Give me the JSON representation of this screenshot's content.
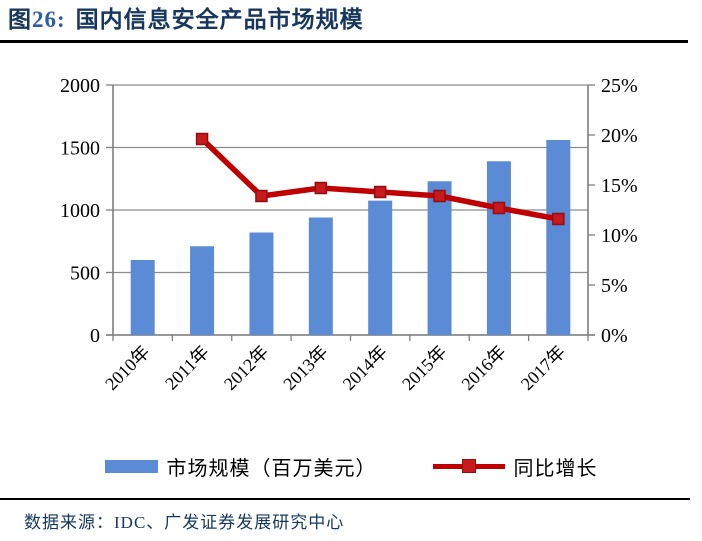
{
  "header": {
    "figure_prefix": "图",
    "figure_num": "26:",
    "title": "国内信息安全产品市场规模"
  },
  "chart_data": {
    "type": "bar",
    "subtype": "bar+line-combo",
    "categories": [
      "2010年",
      "2011年",
      "2012年",
      "2013年",
      "2014年",
      "2015年",
      "2016年",
      "2017年"
    ],
    "series": [
      {
        "name": "市场规模（百万美元）",
        "type": "bar",
        "axis": "left",
        "values": [
          600,
          710,
          820,
          940,
          1075,
          1230,
          1390,
          1560
        ]
      },
      {
        "name": "同比增长",
        "type": "line",
        "axis": "right",
        "unit": "%",
        "values": [
          null,
          19.6,
          13.9,
          14.7,
          14.3,
          13.9,
          12.7,
          11.6
        ]
      }
    ],
    "left_axis": {
      "min": 0,
      "max": 2000,
      "step": 500,
      "tick_labels": [
        "0",
        "500",
        "1000",
        "1500",
        "2000"
      ]
    },
    "right_axis": {
      "min": 0,
      "max": 25,
      "step": 5,
      "tick_labels": [
        "0%",
        "5%",
        "10%",
        "15%",
        "20%",
        "25%"
      ]
    },
    "grid": true,
    "legend_position": "bottom",
    "title": "国内信息安全产品市场规模"
  },
  "footer": {
    "source": "数据来源：IDC、广发证券发展研究中心"
  },
  "colors": {
    "bar": "#5B8BD5",
    "line": "#C00000",
    "marker_fill": "#C8191C",
    "marker_stroke": "#8F1014",
    "grid": "#8C8C8C",
    "axis": "#7F7F7F",
    "title_navy": "#17375E",
    "rule_black": "#000000"
  }
}
